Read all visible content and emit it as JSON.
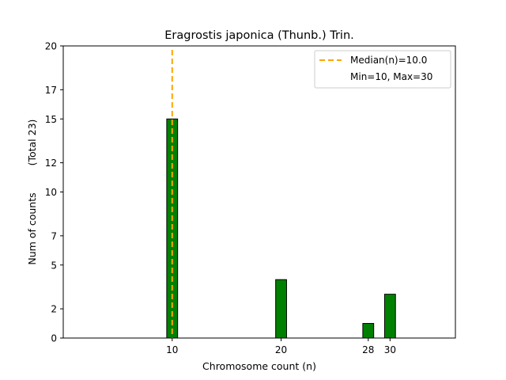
{
  "chart_data": {
    "type": "bar",
    "title": "Eragrostis japonica (Thunb.) Trin.",
    "xlabel": "Chromosome count (n)",
    "ylabel": "Num of counts",
    "ylabel_secondary": "(Total 23)",
    "x": [
      10,
      20,
      28,
      30
    ],
    "values": [
      15,
      4,
      1,
      3
    ],
    "xlim": [
      0,
      36
    ],
    "ylim": [
      0,
      20
    ],
    "xticks": [
      10,
      20,
      28,
      30
    ],
    "yticks": [
      0,
      2,
      5,
      7,
      10,
      12,
      15,
      17,
      20
    ],
    "bar_color": "#008000",
    "bar_edge_color": "#000000",
    "median_line": {
      "x": 10,
      "color": "#FFA500",
      "label": "Median(n)=10.0"
    },
    "legend": {
      "placement": "top-right",
      "entries": [
        "Median(n)=10.0",
        "Min=10, Max=30"
      ]
    },
    "grid": false
  }
}
